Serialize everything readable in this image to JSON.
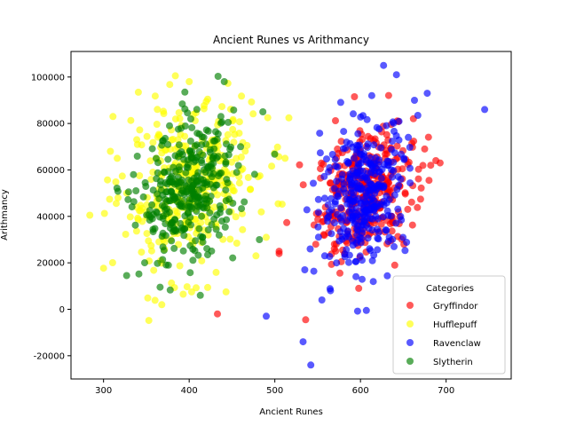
{
  "chart_data": {
    "type": "scatter",
    "title": "Ancient Runes vs Arithmancy",
    "xlabel": "Ancient Runes",
    "ylabel": "Arithmancy",
    "xlim": [
      262,
      776
    ],
    "ylim": [
      -30000,
      111000
    ],
    "xticks": [
      300,
      400,
      500,
      600,
      700
    ],
    "yticks": [
      -20000,
      0,
      20000,
      40000,
      60000,
      80000,
      100000
    ],
    "grid": false,
    "legend": {
      "title": "Categories",
      "placement": "lower-right"
    },
    "series": [
      {
        "name": "Gryffindor",
        "color": "#ff0000",
        "cluster": {
          "cx": 605,
          "sx": 28,
          "cy": 50000,
          "sy": 13000
        },
        "points": [
          [
            433,
            -2000
          ],
          [
            536,
            -4500
          ],
          [
            505,
            24000
          ],
          [
            593,
            91500
          ],
          [
            598,
            9000
          ],
          [
            693,
            63000
          ],
          [
            688,
            64000
          ],
          [
            675,
            69000
          ],
          [
            640,
            19000
          ],
          [
            680,
            55500
          ],
          [
            505,
            25000
          ],
          [
            682,
            62000
          ]
        ]
      },
      {
        "name": "Hufflepuff",
        "color": "#ffff00",
        "cluster": {
          "cx": 400,
          "sx": 40,
          "cy": 52000,
          "sy": 17000
        },
        "points": [
          [
            284,
            40500
          ],
          [
            311,
            83000
          ],
          [
            400,
            98000
          ],
          [
            368,
            2000
          ],
          [
            393,
            6500
          ],
          [
            443,
            7500
          ],
          [
            512,
            65000
          ],
          [
            478,
            23000
          ],
          [
            490,
            31000
          ],
          [
            308,
            68000
          ],
          [
            316,
            65000
          ]
        ]
      },
      {
        "name": "Ravenclaw",
        "color": "#0000ff",
        "cluster": {
          "cx": 605,
          "sx": 25,
          "cy": 50000,
          "sy": 15000
        },
        "points": [
          [
            627,
            105000
          ],
          [
            642,
            101000
          ],
          [
            745,
            86000
          ],
          [
            663,
            90000
          ],
          [
            678,
            93000
          ],
          [
            533,
            -14000
          ],
          [
            542,
            -24000
          ],
          [
            490,
            -3000
          ],
          [
            555,
            4000
          ],
          [
            565,
            8000
          ],
          [
            535,
            17000
          ]
        ]
      },
      {
        "name": "Slytherin",
        "color": "#008000",
        "cluster": {
          "cx": 400,
          "sx": 28,
          "cy": 50000,
          "sy": 14000
        },
        "points": [
          [
            441,
            98000
          ],
          [
            486,
            85000
          ],
          [
            395,
            93500
          ],
          [
            413,
            6000
          ],
          [
            366,
            9500
          ],
          [
            327,
            14500
          ],
          [
            482,
            30000
          ],
          [
            348,
            20000
          ],
          [
            335,
            58000
          ],
          [
            460,
            70000
          ],
          [
            377,
            79000
          ]
        ]
      }
    ]
  }
}
